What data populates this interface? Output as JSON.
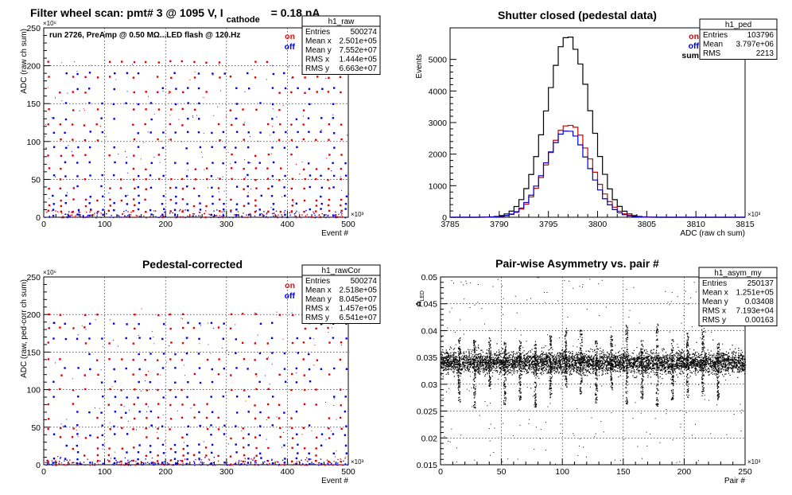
{
  "chart_data": [
    {
      "id": "raw",
      "type": "scatter",
      "title_prefix": "Filter wheel scan: pmt#   3 @  1095 V, I",
      "title_sub": "cathode",
      "title_suffix": "= 0.18 nA",
      "annotation": "run 2726, PreAmp @ 0.50 MΩ...LED flash @  120.Hz",
      "xlabel": "Event #",
      "ylabel": "ADC (raw ch sum)",
      "x_exponent": "×10³",
      "y_exponent": "×10⁶",
      "xlim": [
        0,
        500
      ],
      "ylim": [
        0,
        250
      ],
      "xticks": [
        "0",
        "100",
        "200",
        "300",
        "400",
        "500"
      ],
      "yticks": [
        "0",
        "50",
        "100",
        "150",
        "200",
        "250"
      ],
      "legend": [
        {
          "name": "on",
          "color": "#ff0000"
        },
        {
          "name": "off",
          "color": "#0000ff"
        }
      ],
      "stats": {
        "name": "h1_raw",
        "rows": [
          [
            "Entries",
            "500274"
          ],
          [
            "Mean x",
            "2.501e+05"
          ],
          [
            "Mean y",
            "7.552e+07"
          ],
          [
            "RMS x",
            "1.444e+05"
          ],
          [
            "RMS y",
            "6.663e+07"
          ]
        ]
      },
      "on_levels": [
        205,
        185,
        165,
        142,
        122,
        102,
        82,
        64,
        50,
        38,
        23,
        15,
        8
      ],
      "off_levels": [
        190,
        170,
        150,
        130,
        112,
        92,
        72,
        55,
        40,
        28,
        18,
        10,
        3
      ]
    },
    {
      "id": "ped",
      "type": "line",
      "title": "Shutter closed (pedestal data)",
      "xlabel": "ADC (raw ch sum)",
      "ylabel": "Events",
      "x_exponent": "×10³",
      "xlim": [
        3785,
        3815
      ],
      "ylim": [
        0,
        6000
      ],
      "xticks": [
        "3785",
        "3790",
        "3795",
        "3800",
        "3805",
        "3810",
        "3815"
      ],
      "yticks": [
        "0",
        "1000",
        "2000",
        "3000",
        "4000",
        "5000"
      ],
      "legend": [
        {
          "name": "on",
          "color": "#cc0000"
        },
        {
          "name": "off",
          "color": "#0000cc"
        },
        {
          "name": "sum",
          "color": "#000000"
        }
      ],
      "stats": {
        "name": "h1_ped",
        "rows": [
          [
            "Entries",
            "103796"
          ],
          [
            "Mean",
            "3.797e+06"
          ],
          [
            "RMS",
            "2213"
          ]
        ]
      },
      "series": [
        {
          "name": "sum",
          "color": "#000000",
          "mean": 3797,
          "sigma": 2.21,
          "peak": 5700
        },
        {
          "name": "on",
          "color": "#cc0000",
          "mean": 3797.1,
          "sigma": 2.2,
          "peak": 2950
        },
        {
          "name": "off",
          "color": "#0000cc",
          "mean": 3796.9,
          "sigma": 2.2,
          "peak": 2750
        }
      ]
    },
    {
      "id": "cor",
      "type": "scatter",
      "title": "Pedestal-corrected",
      "xlabel": "Event #",
      "ylabel": "ADC (raw, ped-corr ch sum)",
      "x_exponent": "×10³",
      "y_exponent": "×10⁶",
      "xlim": [
        0,
        500
      ],
      "ylim": [
        0,
        250
      ],
      "xticks": [
        "0",
        "100",
        "200",
        "300",
        "400",
        "500"
      ],
      "yticks": [
        "0",
        "50",
        "100",
        "150",
        "200",
        "250"
      ],
      "legend": [
        {
          "name": "on",
          "color": "#ff0000"
        },
        {
          "name": "off",
          "color": "#0000ff"
        }
      ],
      "stats": {
        "name": "h1_rawCor",
        "rows": [
          [
            "Entries",
            "500274"
          ],
          [
            "Mean x",
            "2.518e+05"
          ],
          [
            "Mean y",
            "8.045e+07"
          ],
          [
            "RMS x",
            "1.457e+05"
          ],
          [
            "RMS y",
            "6.541e+07"
          ]
        ]
      },
      "on_levels": [
        200,
        182,
        162,
        140,
        120,
        100,
        80,
        62,
        48,
        36,
        22,
        12,
        5
      ],
      "off_levels": [
        188,
        168,
        148,
        128,
        110,
        90,
        70,
        52,
        40,
        26,
        16,
        8,
        2
      ]
    },
    {
      "id": "asym",
      "type": "scatter",
      "title": "Pair-wise Asymmetry vs. pair #",
      "xlabel": "Pair #",
      "ylabel": "A",
      "ylabel_sub": "LED",
      "x_exponent": "×10³",
      "xlim": [
        0,
        250
      ],
      "ylim": [
        0.015,
        0.05
      ],
      "xticks": [
        "0",
        "50",
        "100",
        "150",
        "200",
        "250"
      ],
      "yticks": [
        "0.015",
        "0.02",
        "0.025",
        "0.03",
        "0.035",
        "0.04",
        "0.045",
        "0.05"
      ],
      "stats": {
        "name": "h1_asym_my",
        "rows": [
          [
            "Entries",
            "250137"
          ],
          [
            "Mean x",
            "1.251e+05"
          ],
          [
            "Mean y",
            "0.03408"
          ],
          [
            "RMS x",
            "7.193e+04"
          ],
          [
            "RMS y",
            "0.00163"
          ]
        ]
      },
      "band_center": 0.0341,
      "band_halfwidth": 0.0018
    }
  ]
}
